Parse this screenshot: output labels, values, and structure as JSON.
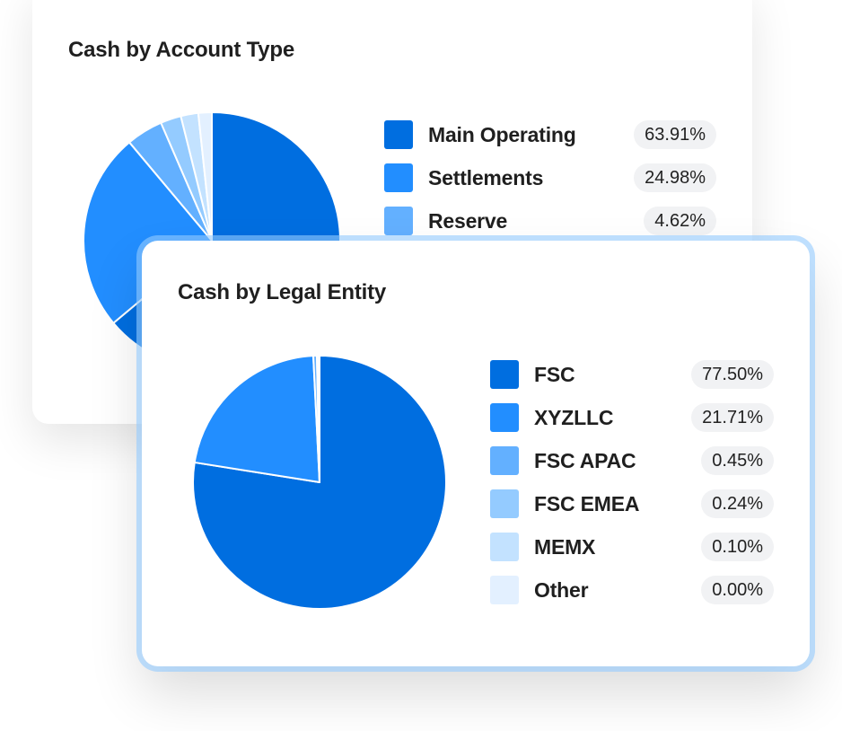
{
  "chart_data": [
    {
      "type": "pie",
      "title": "Cash by Account Type",
      "start": "12 o'clock, clockwise",
      "slices": [
        {
          "label": "Main Operating",
          "value": 63.91,
          "display": "63.91%",
          "color": "#006EE0"
        },
        {
          "label": "Settlements",
          "value": 24.98,
          "display": "24.98%",
          "color": "#228EFF"
        },
        {
          "label": "Reserve",
          "value": 4.62,
          "display": "4.62%",
          "color": "#63B0FF"
        },
        {
          "label": "",
          "value": 2.6,
          "display": "",
          "color": "#94CBFF"
        },
        {
          "label": "",
          "value": 2.2,
          "display": "",
          "color": "#C3E2FF"
        },
        {
          "label": "",
          "value": 1.69,
          "display": "",
          "color": "#E3F0FF"
        }
      ],
      "legend_visible_count": 3
    },
    {
      "type": "pie",
      "title": "Cash by Legal Entity",
      "start": "12 o'clock, clockwise",
      "slices": [
        {
          "label": "FSC",
          "value": 77.5,
          "display": "77.50%",
          "color": "#006EE0"
        },
        {
          "label": "XYZLLC",
          "value": 21.71,
          "display": "21.71%",
          "color": "#228EFF"
        },
        {
          "label": "FSC APAC",
          "value": 0.45,
          "display": "0.45%",
          "color": "#63B0FF"
        },
        {
          "label": "FSC EMEA",
          "value": 0.24,
          "display": "0.24%",
          "color": "#94CBFF"
        },
        {
          "label": "MEMX",
          "value": 0.1,
          "display": "0.10%",
          "color": "#C3E2FF"
        },
        {
          "label": "Other",
          "value": 0.0,
          "display": "0.00%",
          "color": "#E3F0FF"
        }
      ],
      "legend_visible_count": 6
    }
  ]
}
